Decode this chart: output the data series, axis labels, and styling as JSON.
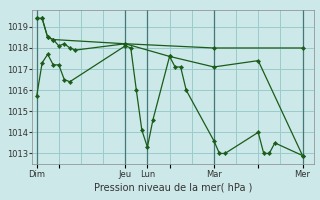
{
  "background_color": "#cce8e8",
  "grid_color": "#99cccc",
  "line_color": "#1a5c1a",
  "marker_color": "#1a5c1a",
  "xlabel": "Pression niveau de la mer( hPa )",
  "ylim": [
    1012.5,
    1019.8
  ],
  "yticks": [
    1013,
    1014,
    1015,
    1016,
    1017,
    1018,
    1019
  ],
  "xtick_labels": [
    "Dim",
    "",
    "Jeu",
    "Lun",
    "",
    "Mar",
    "",
    "Mer"
  ],
  "xtick_positions": [
    0,
    24,
    96,
    120,
    144,
    192,
    240,
    288
  ],
  "vline_positions": [
    0,
    96,
    120,
    192,
    288
  ],
  "xlim": [
    -5,
    300
  ],
  "series": [
    [
      0,
      1015.7,
      6,
      1017.3,
      12,
      1017.7,
      18,
      1017.2,
      24,
      1017.2,
      30,
      1016.5,
      36,
      1016.4,
      96,
      1018.1,
      102,
      1018.0,
      108,
      1016.0,
      114,
      1014.1,
      120,
      1013.3,
      126,
      1014.6,
      144,
      1017.6,
      150,
      1017.1,
      156,
      1017.1,
      162,
      1016.0,
      192,
      1013.6,
      198,
      1013.0,
      204,
      1013.0,
      240,
      1014.0,
      246,
      1013.0,
      252,
      1013.0,
      258,
      1013.5,
      288,
      1012.9
    ],
    [
      0,
      1019.4,
      6,
      1019.4,
      12,
      1018.5,
      18,
      1018.4,
      24,
      1018.1,
      30,
      1018.2,
      36,
      1018.0,
      42,
      1017.9,
      96,
      1018.2,
      192,
      1018.0,
      288,
      1018.0
    ],
    [
      0,
      1019.4,
      6,
      1019.4,
      12,
      1018.5,
      18,
      1018.4,
      96,
      1018.2,
      144,
      1017.6,
      192,
      1017.1,
      240,
      1017.4,
      288,
      1012.9
    ]
  ],
  "xlabel_fontsize": 7,
  "ytick_fontsize": 6,
  "xtick_fontsize": 6
}
